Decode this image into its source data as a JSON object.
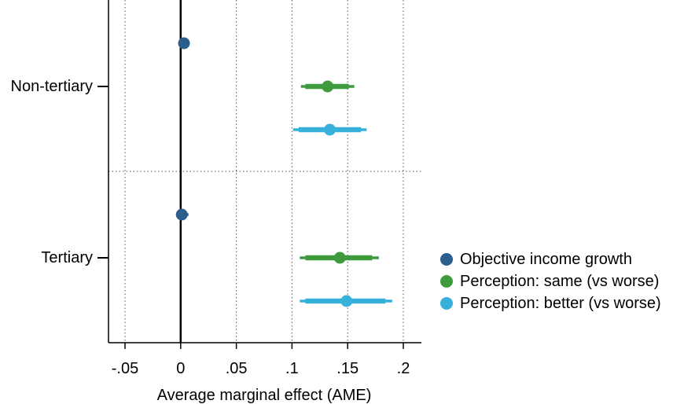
{
  "chart_data": {
    "type": "scatter",
    "subtype": "coefficient-plot",
    "xlabel": "Average marginal effect (AME)",
    "xlim": [
      -0.065,
      0.215
    ],
    "xticks": [
      -0.05,
      0,
      0.05,
      0.1,
      0.15,
      0.2
    ],
    "xtick_labels": [
      "-.05",
      "0",
      ".05",
      ".1",
      ".15",
      ".2"
    ],
    "grid": "vertical dotted",
    "legend_position": "right",
    "groups": [
      "Non-tertiary",
      "Tertiary"
    ],
    "series": [
      {
        "name": "Objective income growth",
        "color": "#2b5e8c",
        "points": [
          {
            "group": "Non-tertiary",
            "estimate": 0.003,
            "ci_inner": [
              0.002,
              0.004
            ],
            "ci_outer": [
              0.002,
              0.004
            ]
          },
          {
            "group": "Tertiary",
            "estimate": 0.001,
            "ci_inner": [
              0.0,
              0.003
            ],
            "ci_outer": [
              -0.002,
              0.007
            ]
          }
        ]
      },
      {
        "name": "Perception: same (vs worse)",
        "color": "#3f9a3e",
        "points": [
          {
            "group": "Non-tertiary",
            "estimate": 0.132,
            "ci_inner": [
              0.112,
              0.151
            ],
            "ci_outer": [
              0.108,
              0.156
            ]
          },
          {
            "group": "Tertiary",
            "estimate": 0.143,
            "ci_inner": [
              0.112,
              0.172
            ],
            "ci_outer": [
              0.107,
              0.178
            ]
          }
        ]
      },
      {
        "name": "Perception: better (vs worse)",
        "color": "#38b1da",
        "points": [
          {
            "group": "Non-tertiary",
            "estimate": 0.134,
            "ci_inner": [
              0.106,
              0.162
            ],
            "ci_outer": [
              0.101,
              0.167
            ]
          },
          {
            "group": "Tertiary",
            "estimate": 0.149,
            "ci_inner": [
              0.112,
              0.184
            ],
            "ci_outer": [
              0.107,
              0.19
            ]
          }
        ]
      }
    ]
  }
}
